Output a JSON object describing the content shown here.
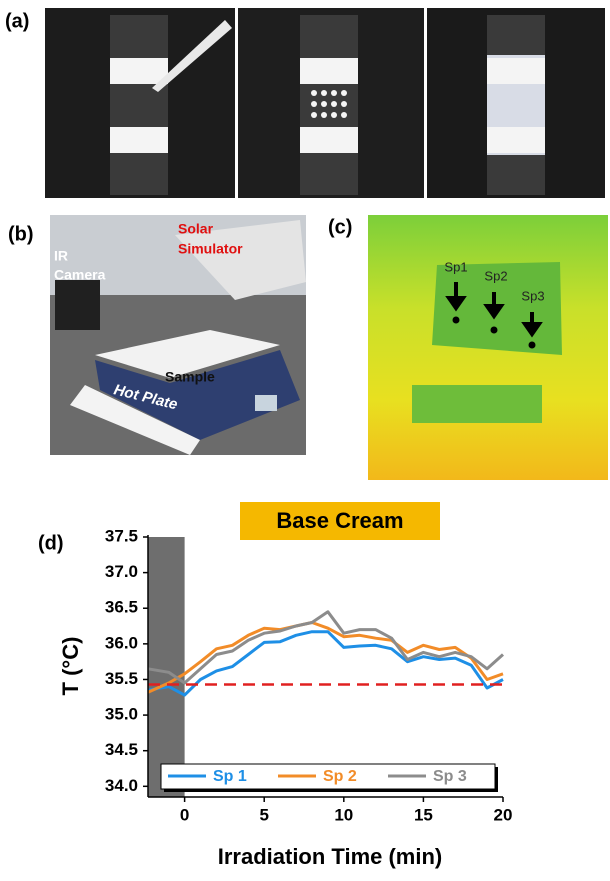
{
  "panels": {
    "a": "(a)",
    "b": "(b)",
    "c": "(c)",
    "d": "(d)"
  },
  "photo_b": {
    "solar_simulator": [
      "Solar",
      "Simulator"
    ],
    "ir_camera": [
      "IR",
      "Camera"
    ],
    "sample": "Sample",
    "hot_plate": "Hot Plate"
  },
  "photo_c": {
    "spots": [
      "Sp1",
      "Sp2",
      "Sp3"
    ]
  },
  "chart_data": {
    "type": "line",
    "title": "Base Cream",
    "x_label": "Irradiation Time (min)",
    "y_label": "T (°C)",
    "x": [
      -2.3,
      -1,
      0,
      1,
      2,
      3,
      4,
      5,
      6,
      7,
      8,
      9,
      10,
      11,
      12,
      13,
      14,
      15,
      16,
      17,
      18,
      19,
      20
    ],
    "series": [
      {
        "name": "Sp 1",
        "color": "#1e8fe6",
        "values": [
          35.35,
          35.4,
          35.28,
          35.5,
          35.62,
          35.68,
          35.85,
          36.02,
          36.03,
          36.12,
          36.17,
          36.17,
          35.95,
          35.97,
          35.98,
          35.93,
          35.75,
          35.82,
          35.78,
          35.8,
          35.7,
          35.38,
          35.5
        ]
      },
      {
        "name": "Sp 2",
        "color": "#f28c28",
        "values": [
          35.32,
          35.45,
          35.58,
          35.75,
          35.93,
          35.98,
          36.12,
          36.22,
          36.2,
          36.25,
          36.3,
          36.22,
          36.1,
          36.12,
          36.08,
          36.05,
          35.88,
          35.98,
          35.92,
          35.95,
          35.8,
          35.5,
          35.58
        ]
      },
      {
        "name": "Sp 3",
        "color": "#8c8c8c",
        "values": [
          35.65,
          35.6,
          35.45,
          35.65,
          35.85,
          35.9,
          36.05,
          36.15,
          36.18,
          36.25,
          36.3,
          36.45,
          36.15,
          36.2,
          36.2,
          36.08,
          35.78,
          35.88,
          35.82,
          35.88,
          35.82,
          35.65,
          35.85
        ]
      }
    ],
    "xlim": [
      -2.3,
      20
    ],
    "ylim": [
      33.85,
      37.5
    ],
    "xticks": [
      0,
      5,
      10,
      15,
      20
    ],
    "yticks": [
      {
        "value": 34,
        "label": "34.0"
      },
      34.5,
      {
        "value": 35,
        "label": "35.0"
      },
      35.5,
      {
        "value": 36,
        "label": "36.0"
      },
      36.5,
      {
        "value": 37,
        "label": "37.0"
      },
      37.5
    ],
    "reference_line": {
      "value": 35.43,
      "color": "#e02020"
    },
    "shaded_region": {
      "x": [
        -2.3,
        0
      ],
      "color": "#6e6e6e"
    },
    "title_box_color": "#f5b800"
  }
}
